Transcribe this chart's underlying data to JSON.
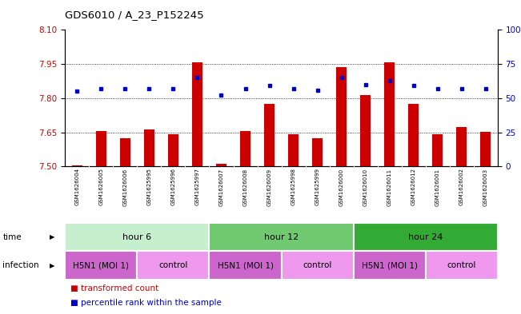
{
  "title": "GDS6010 / A_23_P152245",
  "samples": [
    "GSM1626004",
    "GSM1626005",
    "GSM1626006",
    "GSM1625995",
    "GSM1625996",
    "GSM1625997",
    "GSM1626007",
    "GSM1626008",
    "GSM1626009",
    "GSM1625998",
    "GSM1625999",
    "GSM1626000",
    "GSM1626010",
    "GSM1626011",
    "GSM1626012",
    "GSM1626001",
    "GSM1626002",
    "GSM1626003"
  ],
  "bar_values": [
    7.505,
    7.655,
    7.625,
    7.663,
    7.643,
    7.958,
    7.513,
    7.655,
    7.775,
    7.643,
    7.625,
    7.935,
    7.815,
    7.958,
    7.775,
    7.643,
    7.672,
    7.651
  ],
  "dot_values": [
    55,
    57,
    57,
    57,
    57,
    65,
    52,
    57,
    59,
    57,
    56,
    65,
    60,
    63,
    59,
    57,
    57,
    57
  ],
  "ylim_left": [
    7.5,
    8.1
  ],
  "ylim_right": [
    0,
    100
  ],
  "yticks_left": [
    7.5,
    7.65,
    7.8,
    7.95,
    8.1
  ],
  "yticks_right": [
    0,
    25,
    50,
    75,
    100
  ],
  "bar_color": "#cc0000",
  "dot_color": "#0000cc",
  "bar_bottom": 7.5,
  "time_groups": [
    {
      "label": "hour 6",
      "start": 0,
      "end": 6,
      "color": "#c6efce"
    },
    {
      "label": "hour 12",
      "start": 6,
      "end": 12,
      "color": "#70c870"
    },
    {
      "label": "hour 24",
      "start": 12,
      "end": 18,
      "color": "#33aa33"
    }
  ],
  "infection_groups": [
    {
      "label": "H5N1 (MOI 1)",
      "start": 0,
      "end": 3,
      "color": "#cc66cc"
    },
    {
      "label": "control",
      "start": 3,
      "end": 6,
      "color": "#ee99ee"
    },
    {
      "label": "H5N1 (MOI 1)",
      "start": 6,
      "end": 9,
      "color": "#cc66cc"
    },
    {
      "label": "control",
      "start": 9,
      "end": 12,
      "color": "#ee99ee"
    },
    {
      "label": "H5N1 (MOI 1)",
      "start": 12,
      "end": 15,
      "color": "#cc66cc"
    },
    {
      "label": "control",
      "start": 15,
      "end": 18,
      "color": "#ee99ee"
    }
  ],
  "time_label": "time",
  "infection_label": "infection",
  "legend_items": [
    {
      "label": "transformed count",
      "color": "#cc0000"
    },
    {
      "label": "percentile rank within the sample",
      "color": "#0000cc"
    }
  ],
  "grid_yticks": [
    7.65,
    7.8,
    7.95
  ],
  "background_color": "#ffffff",
  "sample_box_color": "#d0d0d0",
  "sample_divider_color": "#ffffff"
}
